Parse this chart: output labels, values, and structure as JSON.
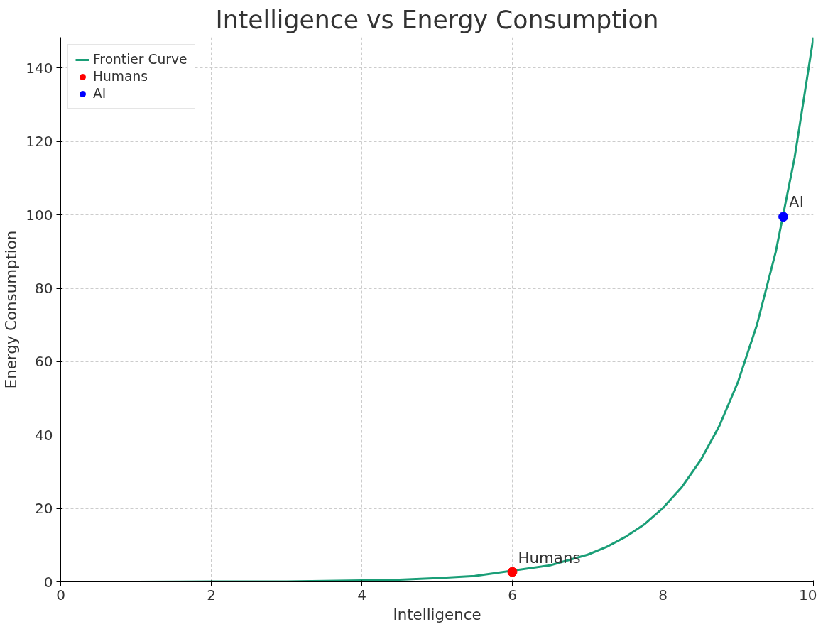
{
  "chart_data": {
    "type": "line",
    "title": "Intelligence vs Energy Consumption",
    "xlabel": "Intelligence",
    "ylabel": "Energy Consumption",
    "xlim": [
      0,
      10
    ],
    "ylim": [
      0,
      148.4
    ],
    "xticks": [
      0,
      2,
      4,
      6,
      8,
      10
    ],
    "yticks": [
      0,
      20,
      40,
      60,
      80,
      100,
      120,
      140
    ],
    "grid": true,
    "legend": "top left",
    "line_style": "solid",
    "series": [
      {
        "name": "Frontier Curve",
        "color": "#1a9e77",
        "x": [
          0,
          1,
          2,
          3,
          4,
          4.5,
          5,
          5.5,
          6.5,
          7,
          7.25,
          7.5,
          7.75,
          8,
          8.25,
          8.5,
          8.75,
          9,
          9.25,
          9.5,
          9.75,
          10
        ],
        "values": [
          0,
          0,
          0.1,
          0.1,
          0.4,
          0.6,
          1,
          1.6,
          4.5,
          7.4,
          9.5,
          12.2,
          15.6,
          20.1,
          25.8,
          33.1,
          42.5,
          54.6,
          70.1,
          90,
          115.6,
          148.4
        ]
      },
      {
        "name": "Humans",
        "type": "scatter",
        "marker": "circle",
        "color": "#ff0000",
        "x": [
          6
        ],
        "values": [
          2.7
        ]
      },
      {
        "name": "AI",
        "type": "scatter",
        "marker": "circle",
        "color": "#0000ff",
        "x": [
          9.6
        ],
        "values": [
          99.5
        ]
      }
    ],
    "annotations": [
      {
        "text": "Humans",
        "x": 6,
        "y": 2.7
      },
      {
        "text": "AI",
        "x": 9.6,
        "y": 99.5
      }
    ]
  }
}
